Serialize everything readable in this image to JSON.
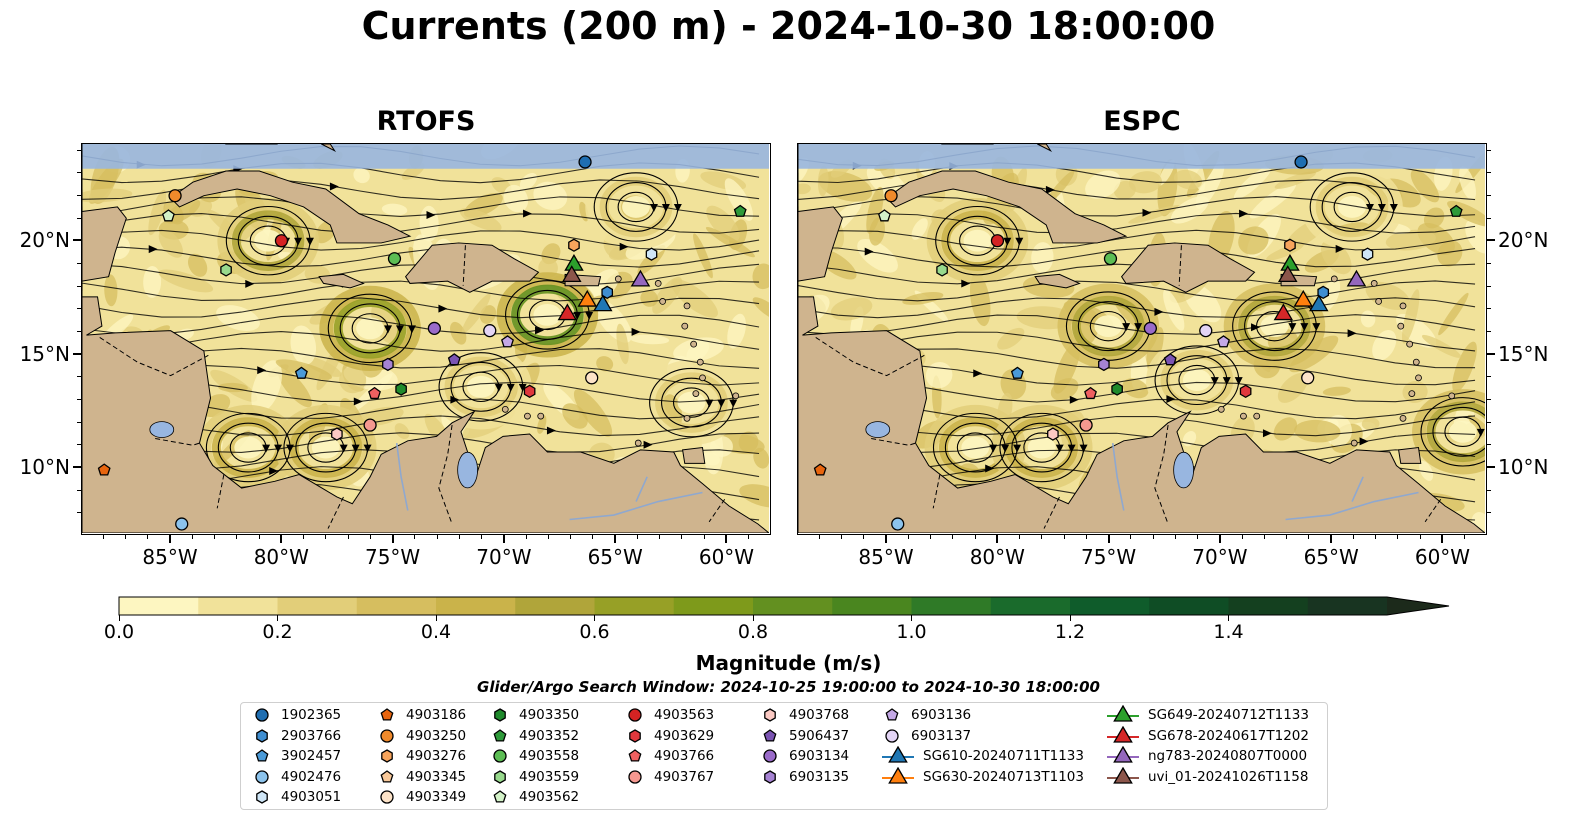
{
  "title": "Currents (200 m) - 2024-10-30 18:00:00",
  "panels": [
    {
      "title": "RTOFS"
    },
    {
      "title": "ESPC"
    }
  ],
  "map_extent": {
    "lon": [
      -89,
      -58
    ],
    "lat": [
      7,
      24.3
    ]
  },
  "x_ticks": [
    {
      "lon": -85,
      "label": "85°W"
    },
    {
      "lon": -80,
      "label": "80°W"
    },
    {
      "lon": -75,
      "label": "75°W"
    },
    {
      "lon": -70,
      "label": "70°W"
    },
    {
      "lon": -65,
      "label": "65°W"
    },
    {
      "lon": -60,
      "label": "60°W"
    }
  ],
  "y_ticks": [
    {
      "lat": 20,
      "label": "20°N"
    },
    {
      "lat": 15,
      "label": "15°N"
    },
    {
      "lat": 10,
      "label": "10°N"
    }
  ],
  "colorbar": {
    "title": "Magnitude (m/s)",
    "range": [
      0,
      1.6
    ],
    "tick_labels": [
      {
        "value": 0.0,
        "label": "0.0"
      },
      {
        "value": 0.2,
        "label": "0.2"
      },
      {
        "value": 0.4,
        "label": "0.4"
      },
      {
        "value": 0.6,
        "label": "0.6"
      },
      {
        "value": 0.8,
        "label": "0.8"
      },
      {
        "value": 1.0,
        "label": "1.0"
      },
      {
        "value": 1.2,
        "label": "1.2"
      },
      {
        "value": 1.4,
        "label": "1.4"
      }
    ],
    "colors": [
      "#fdf6c1",
      "#f1e29a",
      "#e2ce79",
      "#d6be5f",
      "#cab34a",
      "#b0a53a",
      "#97a026",
      "#7e9a1b",
      "#639020",
      "#4a861f",
      "#2f7a27",
      "#1a6b2c",
      "#0f5c2b",
      "#0f4d25",
      "#14401f",
      "#183421",
      "#1c2a1b"
    ]
  },
  "colors": {
    "ocean": "#98b6e0",
    "land": "#cfb48e",
    "coast": "#000000"
  },
  "window_text": "Glider/Argo Search Window: 2024-10-25 19:00:00 to 2024-10-30 18:00:00",
  "legend": [
    {
      "label": "1902365",
      "shape": "circle",
      "color": "#1f6eb1"
    },
    {
      "label": "2903766",
      "shape": "hexagon",
      "color": "#3f8ed1"
    },
    {
      "label": "3902457",
      "shape": "pentagon",
      "color": "#4a9ad8"
    },
    {
      "label": "4902476",
      "shape": "circle",
      "color": "#8cc3ec"
    },
    {
      "label": "4903051",
      "shape": "hexagon",
      "color": "#cfe6f7"
    },
    {
      "label": "4903186",
      "shape": "pentagon",
      "color": "#e8650e"
    },
    {
      "label": "4903250",
      "shape": "circle",
      "color": "#f08a2b"
    },
    {
      "label": "4903276",
      "shape": "hexagon",
      "color": "#f7a45c"
    },
    {
      "label": "4903345",
      "shape": "pentagon",
      "color": "#f9c99a"
    },
    {
      "label": "4903349",
      "shape": "circle",
      "color": "#fde3c8"
    },
    {
      "label": "4903350",
      "shape": "hexagon",
      "color": "#1f8a2c"
    },
    {
      "label": "4903352",
      "shape": "pentagon",
      "color": "#2e9a3a"
    },
    {
      "label": "4903558",
      "shape": "circle",
      "color": "#5cbd54"
    },
    {
      "label": "4903559",
      "shape": "hexagon",
      "color": "#98d98d"
    },
    {
      "label": "4903562",
      "shape": "pentagon",
      "color": "#d3f2c8"
    },
    {
      "label": "4903563",
      "shape": "circle",
      "color": "#d42323"
    },
    {
      "label": "4903629",
      "shape": "hexagon",
      "color": "#e0383d"
    },
    {
      "label": "4903766",
      "shape": "pentagon",
      "color": "#ef6060"
    },
    {
      "label": "4903767",
      "shape": "circle",
      "color": "#f59890"
    },
    {
      "label": "4903768",
      "shape": "hexagon",
      "color": "#fbc9c3"
    },
    {
      "label": "5906437",
      "shape": "pentagon",
      "color": "#7b54b3"
    },
    {
      "label": "6903134",
      "shape": "circle",
      "color": "#9a6bc9"
    },
    {
      "label": "6903135",
      "shape": "hexagon",
      "color": "#a683d3"
    },
    {
      "label": "6903136",
      "shape": "pentagon",
      "color": "#c4a8e6"
    },
    {
      "label": "6903137",
      "shape": "circle",
      "color": "#e3d4f5"
    },
    {
      "label": "SG610-20240711T1133",
      "shape": "triangle",
      "color": "#1f77b4"
    },
    {
      "label": "SG630-20240713T1103",
      "shape": "triangle",
      "color": "#ff7f0e"
    },
    {
      "label": "SG649-20240712T1133",
      "shape": "triangle",
      "color": "#2ca02c"
    },
    {
      "label": "SG678-20240617T1202",
      "shape": "triangle",
      "color": "#d62728"
    },
    {
      "label": "ng783-20240807T0000",
      "shape": "triangle",
      "color": "#9467bd"
    },
    {
      "label": "uvi_01-20241026T1158",
      "shape": "triangle",
      "color": "#8c564b"
    }
  ],
  "markers": {
    "RTOFS": [
      {
        "label": "1902365",
        "lon": -66.3,
        "lat": 23.5
      },
      {
        "label": "4903250",
        "lon": -84.8,
        "lat": 22.0
      },
      {
        "label": "4903562",
        "lon": -85.1,
        "lat": 21.1
      },
      {
        "label": "4903563",
        "lon": -80.0,
        "lat": 20.0
      },
      {
        "label": "4903559",
        "lon": -82.5,
        "lat": 18.7
      },
      {
        "label": "4903558",
        "lon": -74.9,
        "lat": 19.2
      },
      {
        "label": "4903276",
        "lon": -66.8,
        "lat": 19.8
      },
      {
        "label": "4903051",
        "lon": -63.3,
        "lat": 19.4
      },
      {
        "label": "4903352",
        "lon": -59.3,
        "lat": 21.3
      },
      {
        "label": "SG649-20240712T1133",
        "lon": -66.8,
        "lat": 19.0
      },
      {
        "label": "uvi_01-20241026T1158",
        "lon": -66.9,
        "lat": 18.5
      },
      {
        "label": "ng783-20240807T0000",
        "lon": -63.8,
        "lat": 18.3
      },
      {
        "label": "2903766",
        "lon": -65.3,
        "lat": 17.7
      },
      {
        "label": "SG630-20240713T1103",
        "lon": -66.2,
        "lat": 17.4
      },
      {
        "label": "SG610-20240711T1133",
        "lon": -65.5,
        "lat": 17.2
      },
      {
        "label": "SG678-20240617T1202",
        "lon": -67.1,
        "lat": 16.8
      },
      {
        "label": "6903134",
        "lon": -73.1,
        "lat": 16.1
      },
      {
        "label": "6903137",
        "lon": -70.6,
        "lat": 16.0
      },
      {
        "label": "6903136",
        "lon": -69.8,
        "lat": 15.5
      },
      {
        "label": "5906437",
        "lon": -72.2,
        "lat": 14.7
      },
      {
        "label": "6903135",
        "lon": -75.2,
        "lat": 14.5
      },
      {
        "label": "3902457",
        "lon": -79.1,
        "lat": 14.1
      },
      {
        "label": "4903349",
        "lon": -66.0,
        "lat": 13.9
      },
      {
        "label": "4903629",
        "lon": -68.8,
        "lat": 13.3
      },
      {
        "label": "4903350",
        "lon": -74.6,
        "lat": 13.4
      },
      {
        "label": "4903766",
        "lon": -75.8,
        "lat": 13.2
      },
      {
        "label": "4903767",
        "lon": -76.0,
        "lat": 11.8
      },
      {
        "label": "4903768",
        "lon": -77.5,
        "lat": 11.4
      },
      {
        "label": "4903186",
        "lon": -88.0,
        "lat": 9.8
      },
      {
        "label": "4902476",
        "lon": -84.5,
        "lat": 7.4
      }
    ],
    "ESPC": [
      {
        "label": "1902365",
        "lon": -66.3,
        "lat": 23.5
      },
      {
        "label": "4903250",
        "lon": -84.8,
        "lat": 22.0
      },
      {
        "label": "4903562",
        "lon": -85.1,
        "lat": 21.1
      },
      {
        "label": "4903563",
        "lon": -80.0,
        "lat": 20.0
      },
      {
        "label": "4903559",
        "lon": -82.5,
        "lat": 18.7
      },
      {
        "label": "4903558",
        "lon": -74.9,
        "lat": 19.2
      },
      {
        "label": "4903276",
        "lon": -66.8,
        "lat": 19.8
      },
      {
        "label": "4903051",
        "lon": -63.3,
        "lat": 19.4
      },
      {
        "label": "4903352",
        "lon": -59.3,
        "lat": 21.3
      },
      {
        "label": "SG649-20240712T1133",
        "lon": -66.8,
        "lat": 19.0
      },
      {
        "label": "uvi_01-20241026T1158",
        "lon": -66.9,
        "lat": 18.5
      },
      {
        "label": "ng783-20240807T0000",
        "lon": -63.8,
        "lat": 18.3
      },
      {
        "label": "2903766",
        "lon": -65.3,
        "lat": 17.7
      },
      {
        "label": "SG630-20240713T1103",
        "lon": -66.2,
        "lat": 17.4
      },
      {
        "label": "SG610-20240711T1133",
        "lon": -65.5,
        "lat": 17.2
      },
      {
        "label": "SG678-20240617T1202",
        "lon": -67.1,
        "lat": 16.8
      },
      {
        "label": "6903134",
        "lon": -73.1,
        "lat": 16.1
      },
      {
        "label": "6903137",
        "lon": -70.6,
        "lat": 16.0
      },
      {
        "label": "6903136",
        "lon": -69.8,
        "lat": 15.5
      },
      {
        "label": "5906437",
        "lon": -72.2,
        "lat": 14.7
      },
      {
        "label": "6903135",
        "lon": -75.2,
        "lat": 14.5
      },
      {
        "label": "3902457",
        "lon": -79.1,
        "lat": 14.1
      },
      {
        "label": "4903349",
        "lon": -66.0,
        "lat": 13.9
      },
      {
        "label": "4903629",
        "lon": -68.8,
        "lat": 13.3
      },
      {
        "label": "4903350",
        "lon": -74.6,
        "lat": 13.4
      },
      {
        "label": "4903766",
        "lon": -75.8,
        "lat": 13.2
      },
      {
        "label": "4903767",
        "lon": -76.0,
        "lat": 11.8
      },
      {
        "label": "4903768",
        "lon": -77.5,
        "lat": 11.4
      },
      {
        "label": "4903186",
        "lon": -88.0,
        "lat": 9.8
      },
      {
        "label": "4902476",
        "lon": -84.5,
        "lat": 7.4
      }
    ]
  },
  "eddies": {
    "RTOFS": [
      {
        "lon": -80.6,
        "lat": 20.0,
        "speed": 0.5
      },
      {
        "lon": -76.0,
        "lat": 16.1,
        "speed": 0.7
      },
      {
        "lon": -68.0,
        "lat": 16.7,
        "speed": 0.8
      },
      {
        "lon": -81.5,
        "lat": 10.8,
        "speed": 0.45
      },
      {
        "lon": -78.0,
        "lat": 10.8,
        "speed": 0.45
      },
      {
        "lon": -71.0,
        "lat": 13.5,
        "speed": 0.3
      },
      {
        "lon": -64.0,
        "lat": 21.5,
        "speed": 0.3
      },
      {
        "lon": -61.5,
        "lat": 12.8,
        "speed": 0.3
      }
    ],
    "ESPC": [
      {
        "lon": -80.9,
        "lat": 20.0,
        "speed": 0.45
      },
      {
        "lon": -75.0,
        "lat": 16.2,
        "speed": 0.6
      },
      {
        "lon": -67.5,
        "lat": 16.2,
        "speed": 0.6
      },
      {
        "lon": -81.0,
        "lat": 10.8,
        "speed": 0.45
      },
      {
        "lon": -78.0,
        "lat": 10.8,
        "speed": 0.45
      },
      {
        "lon": -71.0,
        "lat": 13.8,
        "speed": 0.3
      },
      {
        "lon": -64.0,
        "lat": 21.5,
        "speed": 0.3
      },
      {
        "lon": -59.0,
        "lat": 11.5,
        "speed": 0.6
      }
    ]
  }
}
